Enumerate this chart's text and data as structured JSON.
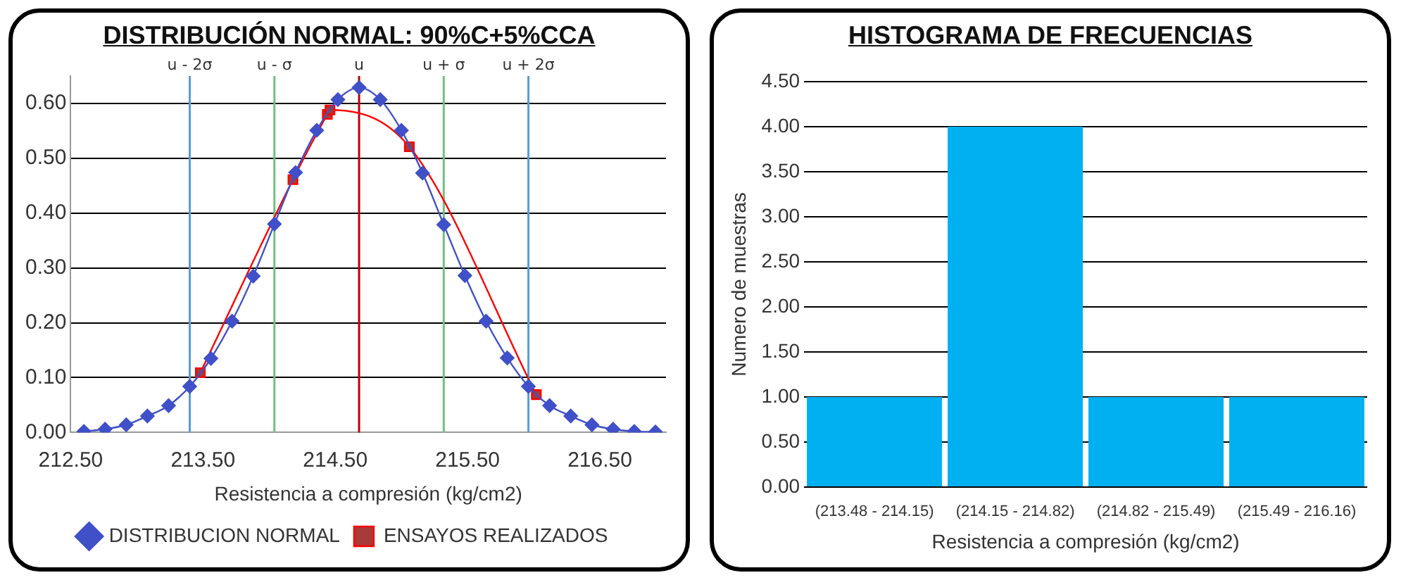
{
  "chart_data": [
    {
      "type": "line",
      "title": "DISTRIBUCIÓN NORMAL: 90%C+5%CCA",
      "xlabel": "Resistencia a compresión (kg/cm2)",
      "series": [
        {
          "name": "DISTRIBUCION NORMAL",
          "color": "#4050c8",
          "marker": "diamond",
          "x": [
            212.6,
            212.76,
            212.92,
            213.08,
            213.24,
            213.4,
            213.56,
            213.72,
            213.88,
            214.04,
            214.2,
            214.36,
            214.52,
            214.68,
            214.84,
            215.0,
            215.16,
            215.32,
            215.48,
            215.64,
            215.8,
            215.96,
            216.12,
            216.28,
            216.44,
            216.6,
            216.76,
            216.92
          ],
          "values": [
            0.002,
            0.006,
            0.014,
            0.03,
            0.049,
            0.084,
            0.135,
            0.203,
            0.285,
            0.38,
            0.474,
            0.551,
            0.607,
            0.629,
            0.607,
            0.551,
            0.473,
            0.379,
            0.286,
            0.203,
            0.136,
            0.084,
            0.049,
            0.03,
            0.014,
            0.006,
            0.002,
            0.001
          ]
        },
        {
          "name": "ENSAYOS REALIZADOS",
          "color": "#ff0000",
          "marker": "square",
          "x": [
            213.48,
            214.18,
            214.44,
            214.46,
            215.06,
            216.02
          ],
          "values": [
            0.109,
            0.461,
            0.58,
            0.588,
            0.521,
            0.069
          ]
        }
      ],
      "xlim": [
        212.5,
        217.0
      ],
      "xticks": [
        {
          "value": 212.5,
          "label": "212.50"
        },
        {
          "value": 213.5,
          "label": "213.50"
        },
        {
          "value": 214.5,
          "label": "214.50"
        },
        {
          "value": 215.5,
          "label": "215.50"
        },
        {
          "value": 216.5,
          "label": "216.50"
        }
      ],
      "ylim": [
        0,
        0.65
      ],
      "yticks": [
        {
          "value": 0,
          "label": "0.00"
        },
        {
          "value": 0.1,
          "label": "0.10"
        },
        {
          "value": 0.2,
          "label": "0.20"
        },
        {
          "value": 0.3,
          "label": "0.30"
        },
        {
          "value": 0.4,
          "label": "0.40"
        },
        {
          "value": 0.5,
          "label": "0.50"
        },
        {
          "value": 0.6,
          "label": "0.60"
        }
      ],
      "grid": "y",
      "legend": "bottom",
      "ref_lines": [
        {
          "axis": "x",
          "value": 213.4,
          "label": "u - 2σ",
          "color": "#5b9bd5"
        },
        {
          "axis": "x",
          "value": 214.04,
          "label": "u - σ",
          "color": "#70c080"
        },
        {
          "axis": "x",
          "value": 214.68,
          "label": "u",
          "color": "#c00000"
        },
        {
          "axis": "x",
          "value": 215.32,
          "label": "u + σ",
          "color": "#70c080"
        },
        {
          "axis": "x",
          "value": 215.96,
          "label": "u + 2σ",
          "color": "#5b9bd5"
        }
      ]
    },
    {
      "type": "bar",
      "title": "HISTOGRAMA DE FRECUENCIAS",
      "xlabel": "Resistencia a compresión (kg/cm2)",
      "ylabel": "Numero de muestras",
      "categories": [
        "(213.48 - 214.15)",
        "(214.15 - 214.82)",
        "(214.82 - 215.49)",
        "(215.49 - 216.16)"
      ],
      "values": [
        1,
        4,
        1,
        1
      ],
      "color": "#00b0f0",
      "ylim": [
        0,
        4.5
      ],
      "yticks": [
        {
          "value": 0,
          "label": "0.00"
        },
        {
          "value": 0.5,
          "label": "0.50"
        },
        {
          "value": 1,
          "label": "1.00"
        },
        {
          "value": 1.5,
          "label": "1.50"
        },
        {
          "value": 2,
          "label": "2.00"
        },
        {
          "value": 2.5,
          "label": "2.50"
        },
        {
          "value": 3,
          "label": "3.00"
        },
        {
          "value": 3.5,
          "label": "3.50"
        },
        {
          "value": 4,
          "label": "4.00"
        },
        {
          "value": 4.5,
          "label": "4.50"
        }
      ],
      "grid": "y"
    }
  ]
}
